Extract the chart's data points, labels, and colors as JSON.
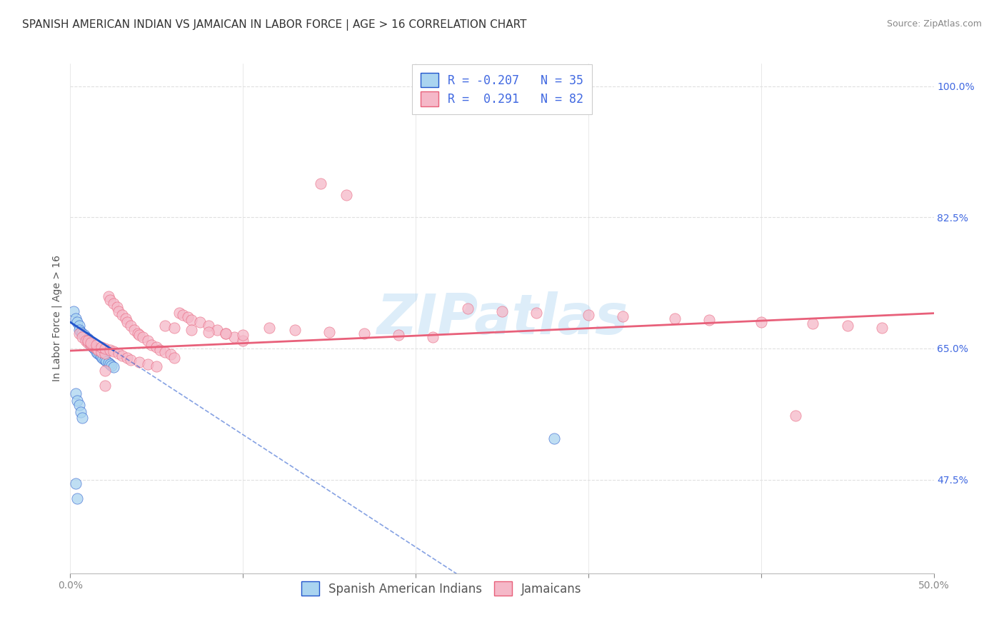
{
  "title": "SPANISH AMERICAN INDIAN VS JAMAICAN IN LABOR FORCE | AGE > 16 CORRELATION CHART",
  "source": "Source: ZipAtlas.com",
  "ylabel": "In Labor Force | Age > 16",
  "xlim": [
    0.0,
    0.5
  ],
  "ylim": [
    0.35,
    1.03
  ],
  "watermark": "ZIPatlas",
  "legend_blue_R": "-0.207",
  "legend_blue_N": "35",
  "legend_pink_R": "0.291",
  "legend_pink_N": "82",
  "blue_scatter_color": "#aad4f0",
  "pink_scatter_color": "#f5b8c8",
  "blue_line_color": "#2255cc",
  "pink_line_color": "#e8607a",
  "blue_x": [
    0.002,
    0.003,
    0.004,
    0.005,
    0.005,
    0.006,
    0.007,
    0.008,
    0.009,
    0.01,
    0.01,
    0.011,
    0.012,
    0.013,
    0.014,
    0.015,
    0.015,
    0.016,
    0.017,
    0.018,
    0.019,
    0.02,
    0.021,
    0.022,
    0.023,
    0.024,
    0.025,
    0.003,
    0.004,
    0.005,
    0.006,
    0.007,
    0.003,
    0.004,
    0.28
  ],
  "blue_y": [
    0.7,
    0.69,
    0.685,
    0.68,
    0.675,
    0.672,
    0.67,
    0.668,
    0.665,
    0.663,
    0.66,
    0.658,
    0.655,
    0.652,
    0.65,
    0.648,
    0.645,
    0.643,
    0.641,
    0.639,
    0.637,
    0.635,
    0.633,
    0.631,
    0.629,
    0.627,
    0.625,
    0.59,
    0.58,
    0.575,
    0.565,
    0.558,
    0.47,
    0.45,
    0.53
  ],
  "pink_x": [
    0.005,
    0.007,
    0.009,
    0.01,
    0.012,
    0.013,
    0.015,
    0.016,
    0.018,
    0.02,
    0.022,
    0.023,
    0.025,
    0.027,
    0.028,
    0.03,
    0.032,
    0.033,
    0.035,
    0.037,
    0.039,
    0.04,
    0.042,
    0.045,
    0.047,
    0.05,
    0.052,
    0.055,
    0.058,
    0.06,
    0.063,
    0.065,
    0.068,
    0.07,
    0.075,
    0.08,
    0.085,
    0.09,
    0.095,
    0.1,
    0.01,
    0.012,
    0.015,
    0.018,
    0.02,
    0.023,
    0.025,
    0.028,
    0.03,
    0.033,
    0.035,
    0.04,
    0.045,
    0.05,
    0.055,
    0.06,
    0.07,
    0.08,
    0.09,
    0.1,
    0.115,
    0.13,
    0.15,
    0.17,
    0.19,
    0.21,
    0.23,
    0.25,
    0.27,
    0.3,
    0.32,
    0.35,
    0.37,
    0.4,
    0.43,
    0.45,
    0.47,
    0.145,
    0.16,
    0.02,
    0.02,
    0.42
  ],
  "pink_y": [
    0.67,
    0.665,
    0.66,
    0.658,
    0.655,
    0.653,
    0.65,
    0.648,
    0.645,
    0.643,
    0.72,
    0.715,
    0.71,
    0.705,
    0.7,
    0.695,
    0.69,
    0.685,
    0.68,
    0.675,
    0.67,
    0.668,
    0.665,
    0.66,
    0.655,
    0.652,
    0.648,
    0.645,
    0.642,
    0.638,
    0.698,
    0.695,
    0.692,
    0.688,
    0.685,
    0.68,
    0.675,
    0.67,
    0.665,
    0.66,
    0.66,
    0.658,
    0.655,
    0.652,
    0.65,
    0.648,
    0.646,
    0.643,
    0.64,
    0.638,
    0.635,
    0.632,
    0.629,
    0.626,
    0.68,
    0.678,
    0.675,
    0.672,
    0.67,
    0.668,
    0.678,
    0.675,
    0.672,
    0.67,
    0.668,
    0.665,
    0.703,
    0.7,
    0.698,
    0.695,
    0.693,
    0.69,
    0.688,
    0.685,
    0.683,
    0.68,
    0.678,
    0.87,
    0.855,
    0.62,
    0.6,
    0.56
  ],
  "background_color": "#ffffff",
  "grid_color": "#e0e0e0",
  "title_fontsize": 11,
  "axis_label_fontsize": 10,
  "tick_fontsize": 10,
  "legend_fontsize": 12
}
